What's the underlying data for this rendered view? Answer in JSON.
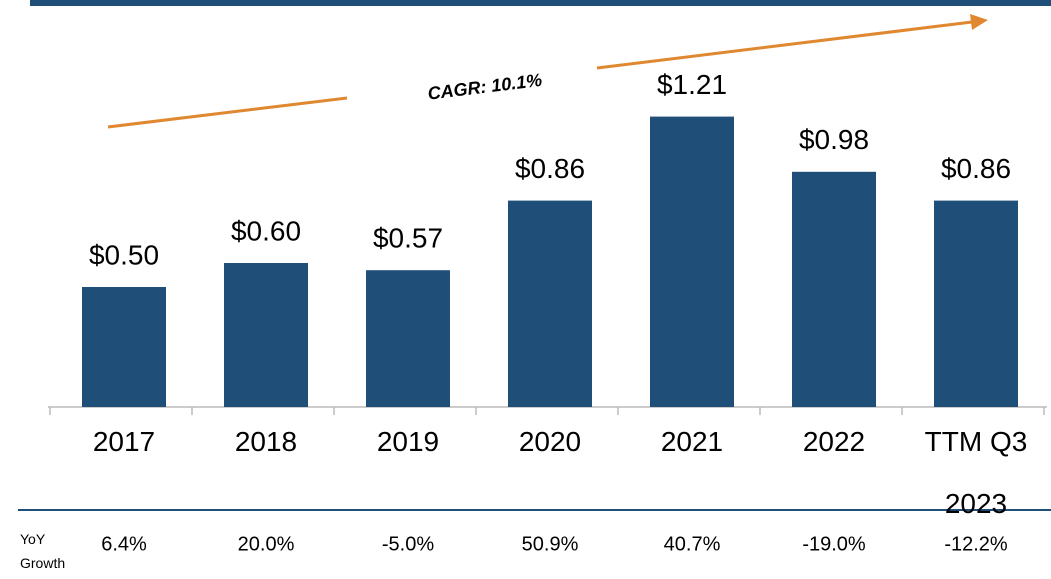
{
  "chart_data": {
    "type": "bar",
    "categories": [
      "2017",
      "2018",
      "2019",
      "2020",
      "2021",
      "2022",
      "TTM Q3 2023"
    ],
    "values": [
      0.5,
      0.6,
      0.57,
      0.86,
      1.21,
      0.98,
      0.86
    ],
    "value_labels": [
      "$0.50",
      "$0.60",
      "$0.57",
      "$0.86",
      "$1.21",
      "$0.98",
      "$0.86"
    ],
    "color": "#1f4e79",
    "ylim": [
      0,
      1.5
    ],
    "annotation": {
      "text": "CAGR: 10.1%",
      "color": "#e0882f"
    },
    "growth": {
      "label": "YoY Growth",
      "values": [
        6.4,
        20.0,
        -5.0,
        50.9,
        40.7,
        -19.0,
        -12.2
      ],
      "value_labels": [
        "6.4%",
        "20.0%",
        "-5.0%",
        "50.9%",
        "40.7%",
        "-19.0%",
        "-12.2%"
      ]
    }
  }
}
